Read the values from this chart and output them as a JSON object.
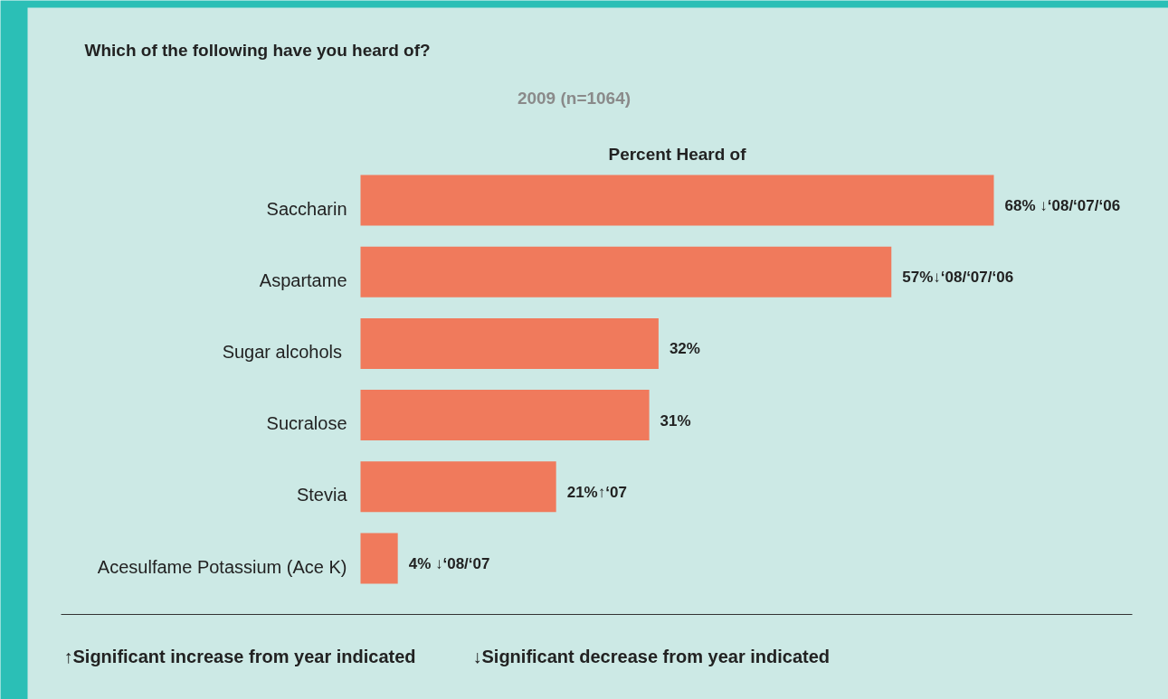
{
  "chart_data": {
    "type": "bar",
    "orientation": "horizontal",
    "title": "Which of the following have you heard of?",
    "subtitle": "2009 (n=1064)",
    "xlabel": "Percent Heard of",
    "categories": [
      "Saccharin",
      "Aspartame",
      "Sugar  alcohols",
      "Sucralose",
      "Stevia",
      "Acesulfame Potassium (Ace K)"
    ],
    "values": [
      68,
      57,
      32,
      31,
      21,
      4
    ],
    "color": "#f07a5c",
    "value_labels": [
      "68% ↓‘08/‘07/‘06",
      "57%↓‘08/‘07/‘06",
      "32%",
      "31%",
      "21%↑‘07",
      "4% ↓‘08/‘07"
    ],
    "annotations": [
      "↑Significant increase from year indicated",
      "↓Significant decrease from year indicated"
    ]
  }
}
